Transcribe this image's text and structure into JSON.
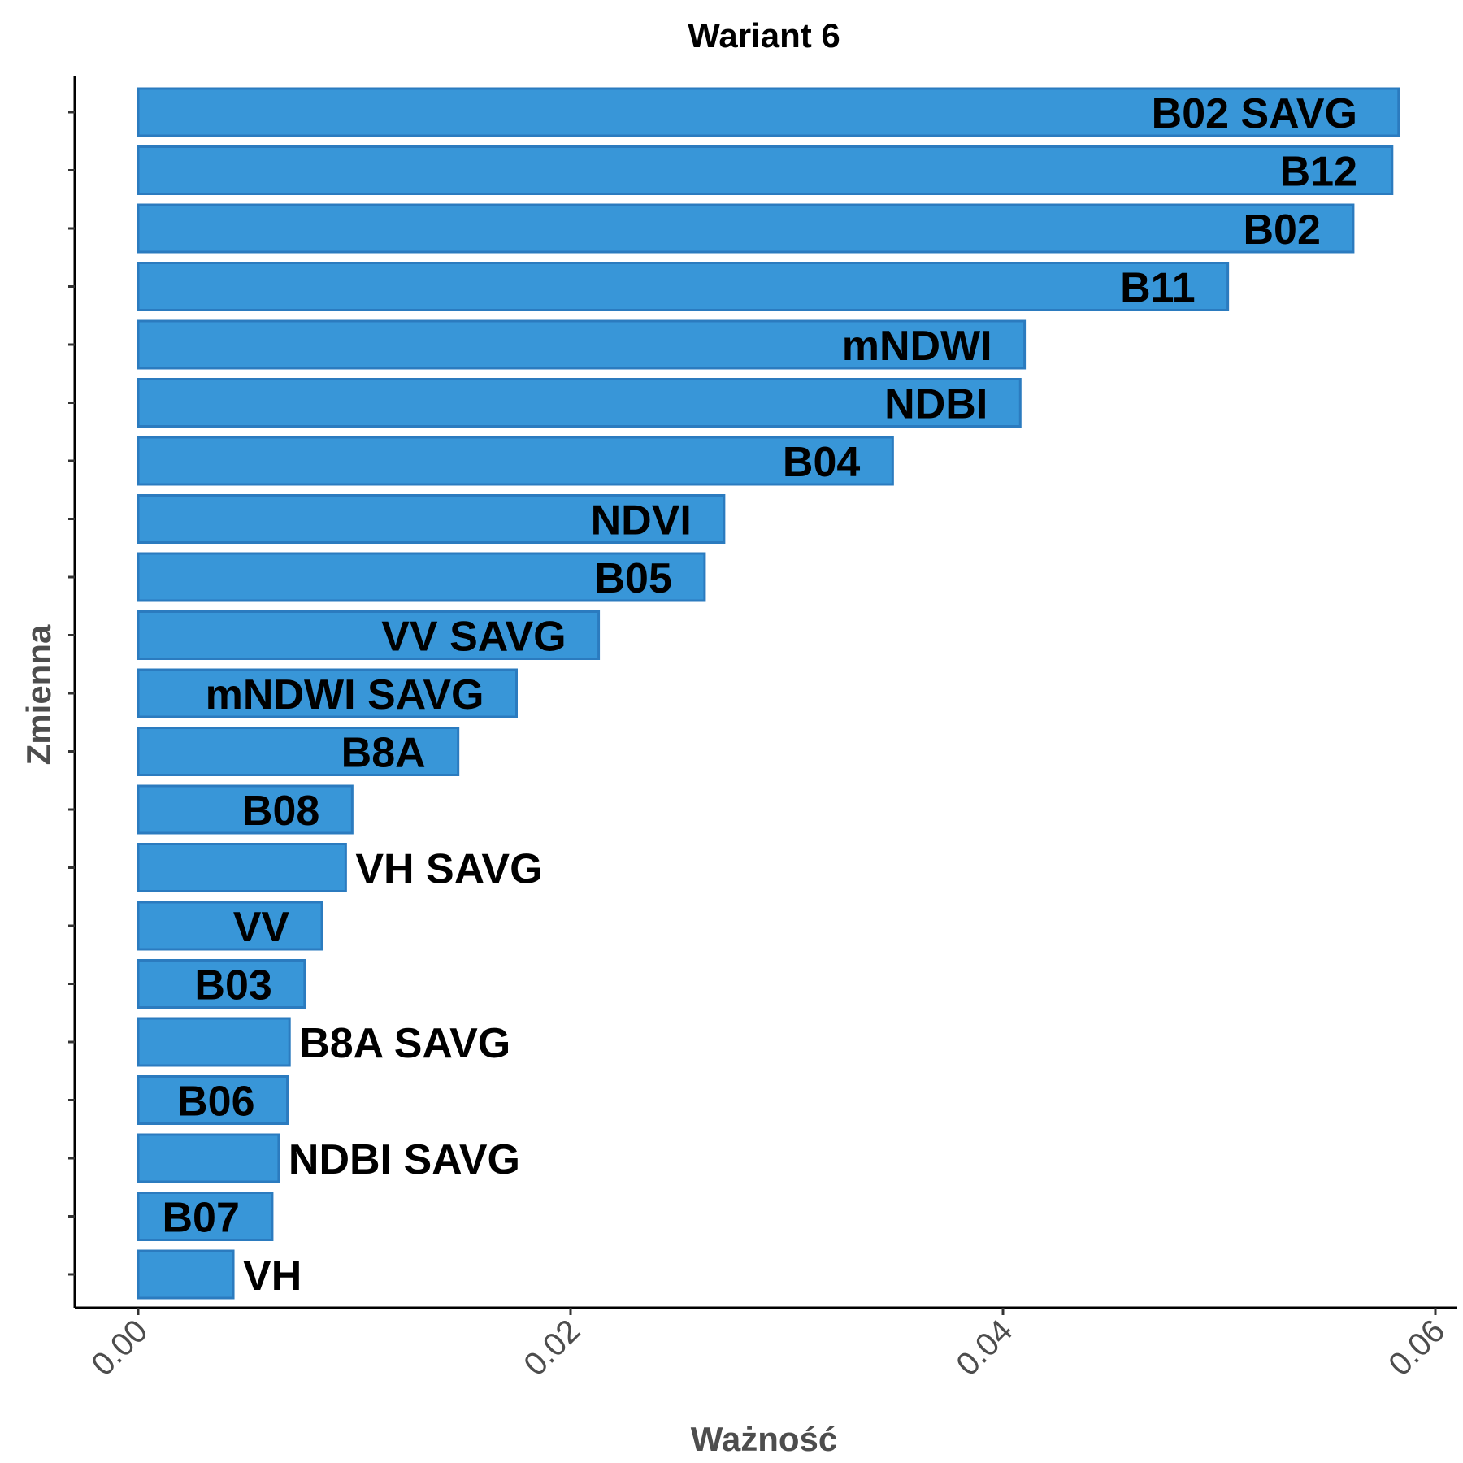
{
  "chart_data": {
    "type": "bar",
    "orientation": "horizontal",
    "title": "Wariant 6",
    "xlabel": "Ważność",
    "ylabel": "Zmienna",
    "xlim": [
      -0.003,
      0.061
    ],
    "xticks": [
      0.0,
      0.02,
      0.04,
      0.06
    ],
    "xtick_labels": [
      "0.00",
      "0.02",
      "0.04",
      "0.06"
    ],
    "grid": false,
    "legend": "none",
    "bar_color": "#3896d8",
    "bar_edge_color": "#2b7bbf",
    "categories": [
      "B02 SAVG",
      "B12",
      "B02",
      "B11",
      "mNDWI",
      "NDBI",
      "B04",
      "NDVI",
      "B05",
      "VV SAVG",
      "mNDWI SAVG",
      "B8A",
      "B08",
      "VH SAVG",
      "VV",
      "B03",
      "B8A SAVG",
      "B06",
      "NDBI SAVG",
      "B07",
      "VH"
    ],
    "values": [
      0.0583,
      0.058,
      0.0562,
      0.0504,
      0.041,
      0.0408,
      0.0349,
      0.0271,
      0.0262,
      0.0213,
      0.0175,
      0.0148,
      0.0099,
      0.0096,
      0.0085,
      0.0077,
      0.007,
      0.0069,
      0.0065,
      0.0062,
      0.0044
    ]
  }
}
